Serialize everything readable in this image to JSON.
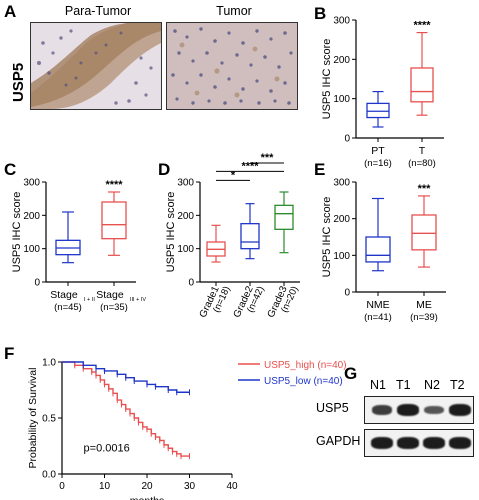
{
  "panels": {
    "A": "A",
    "B": "B",
    "C": "C",
    "D": "D",
    "E": "E",
    "F": "F",
    "G": "G"
  },
  "panel_a": {
    "row_label": "USP5",
    "titles": [
      "Para-Tumor",
      "Tumor"
    ]
  },
  "colors": {
    "red": "#e8504f",
    "blue": "#1f35c9",
    "green": "#2c8c2c",
    "black": "#000000"
  },
  "chart_data": [
    {
      "id": "B",
      "type": "box",
      "ylabel": "USP5 IHC score",
      "ylim": [
        0,
        300
      ],
      "yticks": [
        0,
        100,
        200,
        300
      ],
      "groups": [
        {
          "name": "PT",
          "n": "(n=16)",
          "color": "#1f35c9",
          "min": 28,
          "q1": 52,
          "median": 68,
          "q3": 88,
          "max": 118
        },
        {
          "name": "T",
          "n": "(n=80)",
          "color": "#e8504f",
          "min": 58,
          "q1": 92,
          "median": 118,
          "q3": 178,
          "max": 268
        }
      ],
      "sig": [
        {
          "label": "****",
          "over": 1
        }
      ]
    },
    {
      "id": "C",
      "type": "box",
      "ylabel": "USP5 IHC score",
      "ylim": [
        0,
        300
      ],
      "yticks": [
        0,
        100,
        200,
        300
      ],
      "groups": [
        {
          "name": "Stage",
          "sub": "I + II",
          "n": "(n=45)",
          "color": "#1f35c9",
          "min": 58,
          "q1": 82,
          "median": 102,
          "q3": 125,
          "max": 210
        },
        {
          "name": "Stage",
          "sub": "III + IV",
          "n": "(n=35)",
          "color": "#e8504f",
          "min": 80,
          "q1": 130,
          "median": 172,
          "q3": 240,
          "max": 270
        }
      ],
      "sig": [
        {
          "label": "****",
          "over": 1
        }
      ]
    },
    {
      "id": "D",
      "type": "box",
      "ylabel": "USP5 IHC score",
      "ylim": [
        0,
        300
      ],
      "yticks": [
        0,
        100,
        200,
        300
      ],
      "groups": [
        {
          "name": "Grade1",
          "n": "(n=18)",
          "color": "#e8504f",
          "min": 60,
          "q1": 78,
          "median": 98,
          "q3": 120,
          "max": 170
        },
        {
          "name": "Grade2",
          "n": "(n=42)",
          "color": "#1f35c9",
          "min": 70,
          "q1": 100,
          "median": 120,
          "q3": 175,
          "max": 235
        },
        {
          "name": "Grade3",
          "n": "(n=20)",
          "color": "#2c8c2c",
          "min": 88,
          "q1": 158,
          "median": 205,
          "q3": 230,
          "max": 270
        }
      ],
      "brackets": [
        {
          "from": 0,
          "to": 1,
          "label": "*",
          "level": 0
        },
        {
          "from": 0,
          "to": 2,
          "label": "****",
          "level": 1
        },
        {
          "from": 1,
          "to": 2,
          "label": "***",
          "level": 2
        }
      ]
    },
    {
      "id": "E",
      "type": "box",
      "ylabel": "USP5 IHC score",
      "ylim": [
        0,
        300
      ],
      "yticks": [
        0,
        100,
        200,
        300
      ],
      "groups": [
        {
          "name": "NME",
          "n": "(n=41)",
          "color": "#1f35c9",
          "min": 58,
          "q1": 82,
          "median": 100,
          "q3": 150,
          "max": 255
        },
        {
          "name": "ME",
          "n": "(n=39)",
          "color": "#e8504f",
          "min": 68,
          "q1": 115,
          "median": 160,
          "q3": 210,
          "max": 262
        }
      ],
      "sig": [
        {
          "label": "***",
          "over": 1
        }
      ]
    },
    {
      "id": "F",
      "type": "line",
      "xlabel": "months",
      "ylabel": "Probability of Survival",
      "xlim": [
        0,
        40
      ],
      "ylim": [
        0,
        1.0
      ],
      "xticks": [
        0,
        10,
        20,
        30,
        40
      ],
      "yticks": [
        0.0,
        0.5,
        1.0
      ],
      "annotation": "p=0.0016",
      "series": [
        {
          "name": "USP5_high (n=40)",
          "color": "#e8504f",
          "x": [
            0,
            3,
            5,
            7,
            8,
            9,
            10,
            11,
            12,
            13,
            14,
            15,
            16,
            17,
            18,
            19,
            20,
            21,
            22,
            23,
            24,
            25,
            26,
            27,
            28,
            30
          ],
          "y": [
            1.0,
            0.97,
            0.94,
            0.91,
            0.88,
            0.84,
            0.8,
            0.76,
            0.72,
            0.66,
            0.62,
            0.58,
            0.54,
            0.5,
            0.46,
            0.42,
            0.4,
            0.36,
            0.33,
            0.3,
            0.26,
            0.23,
            0.2,
            0.18,
            0.16,
            0.16
          ]
        },
        {
          "name": "USP5_low (n=40)",
          "color": "#1f35c9",
          "x": [
            0,
            5,
            8,
            10,
            13,
            15,
            17,
            20,
            22,
            25,
            27,
            30
          ],
          "y": [
            1.0,
            0.97,
            0.94,
            0.92,
            0.89,
            0.86,
            0.83,
            0.8,
            0.78,
            0.75,
            0.73,
            0.73
          ]
        }
      ]
    }
  ],
  "panel_g": {
    "lanes": [
      "N1",
      "T1",
      "N2",
      "T2"
    ],
    "rows": [
      {
        "label": "USP5",
        "intensity": [
          0.72,
          0.95,
          0.55,
          0.95
        ]
      },
      {
        "label": "GAPDH",
        "intensity": [
          0.95,
          0.95,
          0.95,
          0.95
        ]
      }
    ]
  }
}
